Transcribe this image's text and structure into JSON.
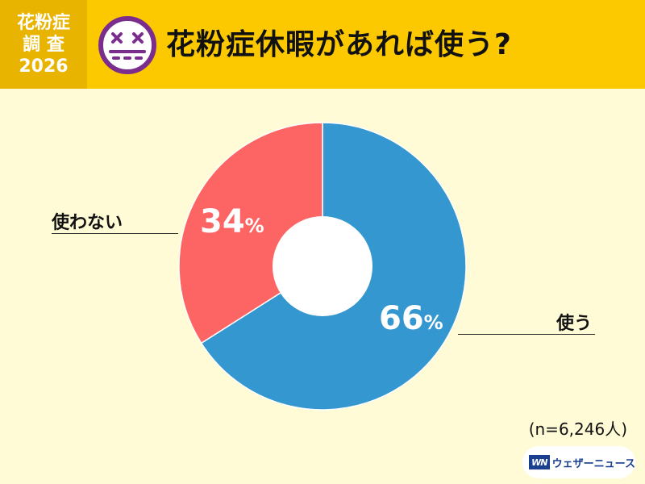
{
  "header": {
    "badge_lines": [
      "花粉症",
      "調 査",
      "2026"
    ],
    "title": "花粉症休暇があれば使う?",
    "face_icon": "dizzy-face-icon"
  },
  "chart_data": {
    "type": "pie",
    "donut": true,
    "title": "花粉症休暇があれば使う?",
    "slices": [
      {
        "label": "使う",
        "value": 66,
        "display": "66",
        "unit": "%",
        "color": "#3597cf"
      },
      {
        "label": "使わない",
        "value": 34,
        "display": "34",
        "unit": "%",
        "color": "#fd6464"
      }
    ],
    "start_angle": "12 o'clock",
    "direction": "clockwise",
    "sample_note": "(n=6,246人)"
  },
  "footer": {
    "brand_mark": "WN",
    "brand_name": "ウェザーニュース"
  },
  "colors": {
    "header_bg": "#fcc900",
    "badge_bg": "#e9b400",
    "page_bg": "#fffbd6",
    "face": "#7b2d8e"
  }
}
